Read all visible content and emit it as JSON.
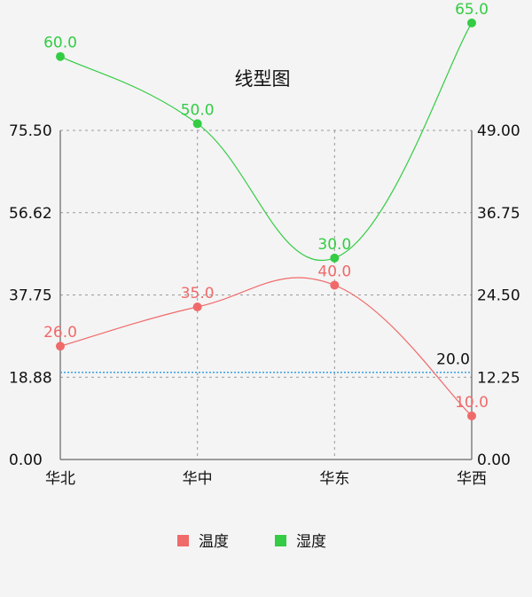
{
  "chart_data": {
    "type": "line",
    "title": "线型图",
    "categories": [
      "华北",
      "华中",
      "华东",
      "华西"
    ],
    "series": [
      {
        "name": "温度",
        "axis": "left",
        "values": [
          26.0,
          35.0,
          40.0,
          10.0
        ],
        "labels": [
          "26.0",
          "35.0",
          "40.0",
          "10.0"
        ],
        "color": "#f06a6a"
      },
      {
        "name": "湿度",
        "axis": "right",
        "values": [
          60.0,
          50.0,
          30.0,
          65.0
        ],
        "labels": [
          "60.0",
          "50.0",
          "30.0",
          "65.0"
        ],
        "color": "#33cc44"
      }
    ],
    "left_axis": {
      "min": 0,
      "max": 75.5,
      "ticks": [
        "0.00",
        "18.88",
        "37.75",
        "56.62",
        "75.50"
      ]
    },
    "right_axis": {
      "min": 0,
      "max": 49,
      "ticks": [
        "0.00",
        "12.25",
        "24.50",
        "36.75",
        "49.00"
      ]
    },
    "limit_line": {
      "value": 20.0,
      "label": "20.0",
      "color": "#3aa0e0"
    },
    "grid": true,
    "legend_position": "bottom-center"
  }
}
